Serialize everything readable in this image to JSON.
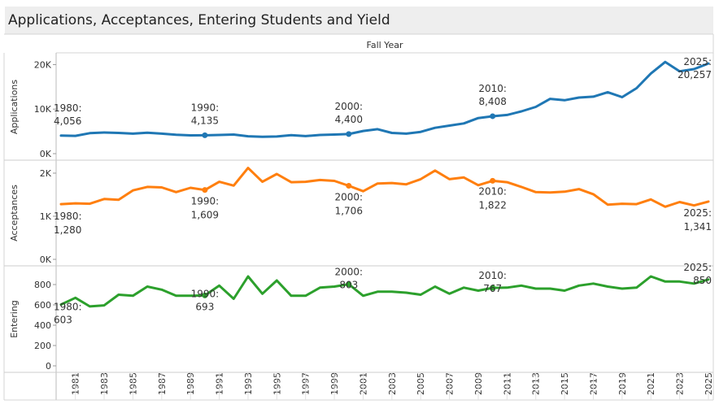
{
  "title": "Applications, Acceptances, Entering Students and Yield",
  "chart_data": {
    "type": "line",
    "column_header": "Fall Year",
    "x": [
      1980,
      1981,
      1982,
      1983,
      1984,
      1985,
      1986,
      1987,
      1988,
      1989,
      1990,
      1991,
      1992,
      1993,
      1994,
      1995,
      1996,
      1997,
      1998,
      1999,
      2000,
      2001,
      2002,
      2003,
      2004,
      2005,
      2006,
      2007,
      2008,
      2009,
      2010,
      2011,
      2012,
      2013,
      2014,
      2015,
      2016,
      2017,
      2018,
      2019,
      2020,
      2021,
      2022,
      2023,
      2024,
      2025
    ],
    "x_tick_labels": [
      "1981",
      "1983",
      "1985",
      "1987",
      "1989",
      "1991",
      "1993",
      "1995",
      "1997",
      "1999",
      "2001",
      "2003",
      "2005",
      "2007",
      "2009",
      "2011",
      "2013",
      "2015",
      "2017",
      "2019",
      "2021",
      "2023",
      "2025"
    ],
    "panels": [
      {
        "name": "Applications",
        "ylabel": "Applications",
        "color": "#1f77b4",
        "ylim": [
          0,
          21000
        ],
        "ticks": [
          0,
          10000,
          20000
        ],
        "tick_labels": [
          "0K",
          "10K",
          "20K"
        ],
        "values": [
          4056,
          4000,
          4600,
          4750,
          4650,
          4500,
          4700,
          4500,
          4250,
          4100,
          4135,
          4200,
          4300,
          3900,
          3800,
          3850,
          4150,
          3950,
          4200,
          4300,
          4400,
          5100,
          5500,
          4650,
          4500,
          4900,
          5800,
          6300,
          6800,
          8000,
          8408,
          8700,
          9500,
          10500,
          12300,
          12000,
          12600,
          12800,
          13800,
          12700,
          14700,
          18000,
          20600,
          18500,
          19000,
          20257
        ],
        "annotations": [
          {
            "year": 1980,
            "year_label": "1980:",
            "value_label": "4,056",
            "marker": false
          },
          {
            "year": 1990,
            "year_label": "1990:",
            "value_label": "4,135",
            "marker": true
          },
          {
            "year": 2000,
            "year_label": "2000:",
            "value_label": "4,400",
            "marker": true
          },
          {
            "year": 2010,
            "year_label": "2010:",
            "value_label": "8,408",
            "marker": true
          },
          {
            "year": 2025,
            "year_label": "2025:",
            "value_label": "20,257",
            "marker": false
          }
        ]
      },
      {
        "name": "Acceptances",
        "ylabel": "Acceptances",
        "color": "#ff7f0e",
        "ylim": [
          0,
          2150
        ],
        "ticks": [
          0,
          1000,
          2000
        ],
        "tick_labels": [
          "0K",
          "1K",
          "2K"
        ],
        "values": [
          1280,
          1300,
          1290,
          1400,
          1380,
          1600,
          1680,
          1670,
          1560,
          1660,
          1609,
          1800,
          1710,
          2120,
          1800,
          1980,
          1790,
          1800,
          1840,
          1820,
          1706,
          1580,
          1760,
          1770,
          1740,
          1860,
          2060,
          1860,
          1900,
          1720,
          1822,
          1790,
          1680,
          1560,
          1550,
          1570,
          1630,
          1510,
          1270,
          1290,
          1280,
          1390,
          1220,
          1330,
          1250,
          1341
        ],
        "annotations": [
          {
            "year": 1980,
            "year_label": "1980:",
            "value_label": "1,280",
            "marker": false
          },
          {
            "year": 1990,
            "year_label": "1990:",
            "value_label": "1,609",
            "marker": true
          },
          {
            "year": 2000,
            "year_label": "2000:",
            "value_label": "1,706",
            "marker": true
          },
          {
            "year": 2010,
            "year_label": "2010:",
            "value_label": "1,822",
            "marker": true
          },
          {
            "year": 2025,
            "year_label": "2025:",
            "value_label": "1,341",
            "marker": false
          }
        ]
      },
      {
        "name": "Entering",
        "ylabel": "Entering",
        "color": "#2ca02c",
        "ylim": [
          0,
          920
        ],
        "ticks": [
          0,
          200,
          400,
          600,
          800
        ],
        "tick_labels": [
          "0",
          "200",
          "400",
          "600",
          "800"
        ],
        "values": [
          603,
          670,
          585,
          595,
          700,
          690,
          780,
          750,
          690,
          690,
          693,
          790,
          660,
          880,
          710,
          840,
          690,
          690,
          770,
          780,
          803,
          690,
          730,
          730,
          720,
          700,
          780,
          710,
          770,
          740,
          767,
          770,
          790,
          760,
          760,
          740,
          790,
          810,
          780,
          760,
          770,
          880,
          830,
          830,
          810,
          850
        ],
        "annotations": [
          {
            "year": 1980,
            "year_label": "1980:",
            "value_label": "603",
            "marker": false
          },
          {
            "year": 1990,
            "year_label": "1990:",
            "value_label": "693",
            "marker": true
          },
          {
            "year": 2000,
            "year_label": "2000:",
            "value_label": "803",
            "marker": true
          },
          {
            "year": 2010,
            "year_label": "2010:",
            "value_label": "767",
            "marker": true
          },
          {
            "year": 2025,
            "year_label": "2025:",
            "value_label": "850",
            "marker": false
          }
        ]
      }
    ]
  }
}
